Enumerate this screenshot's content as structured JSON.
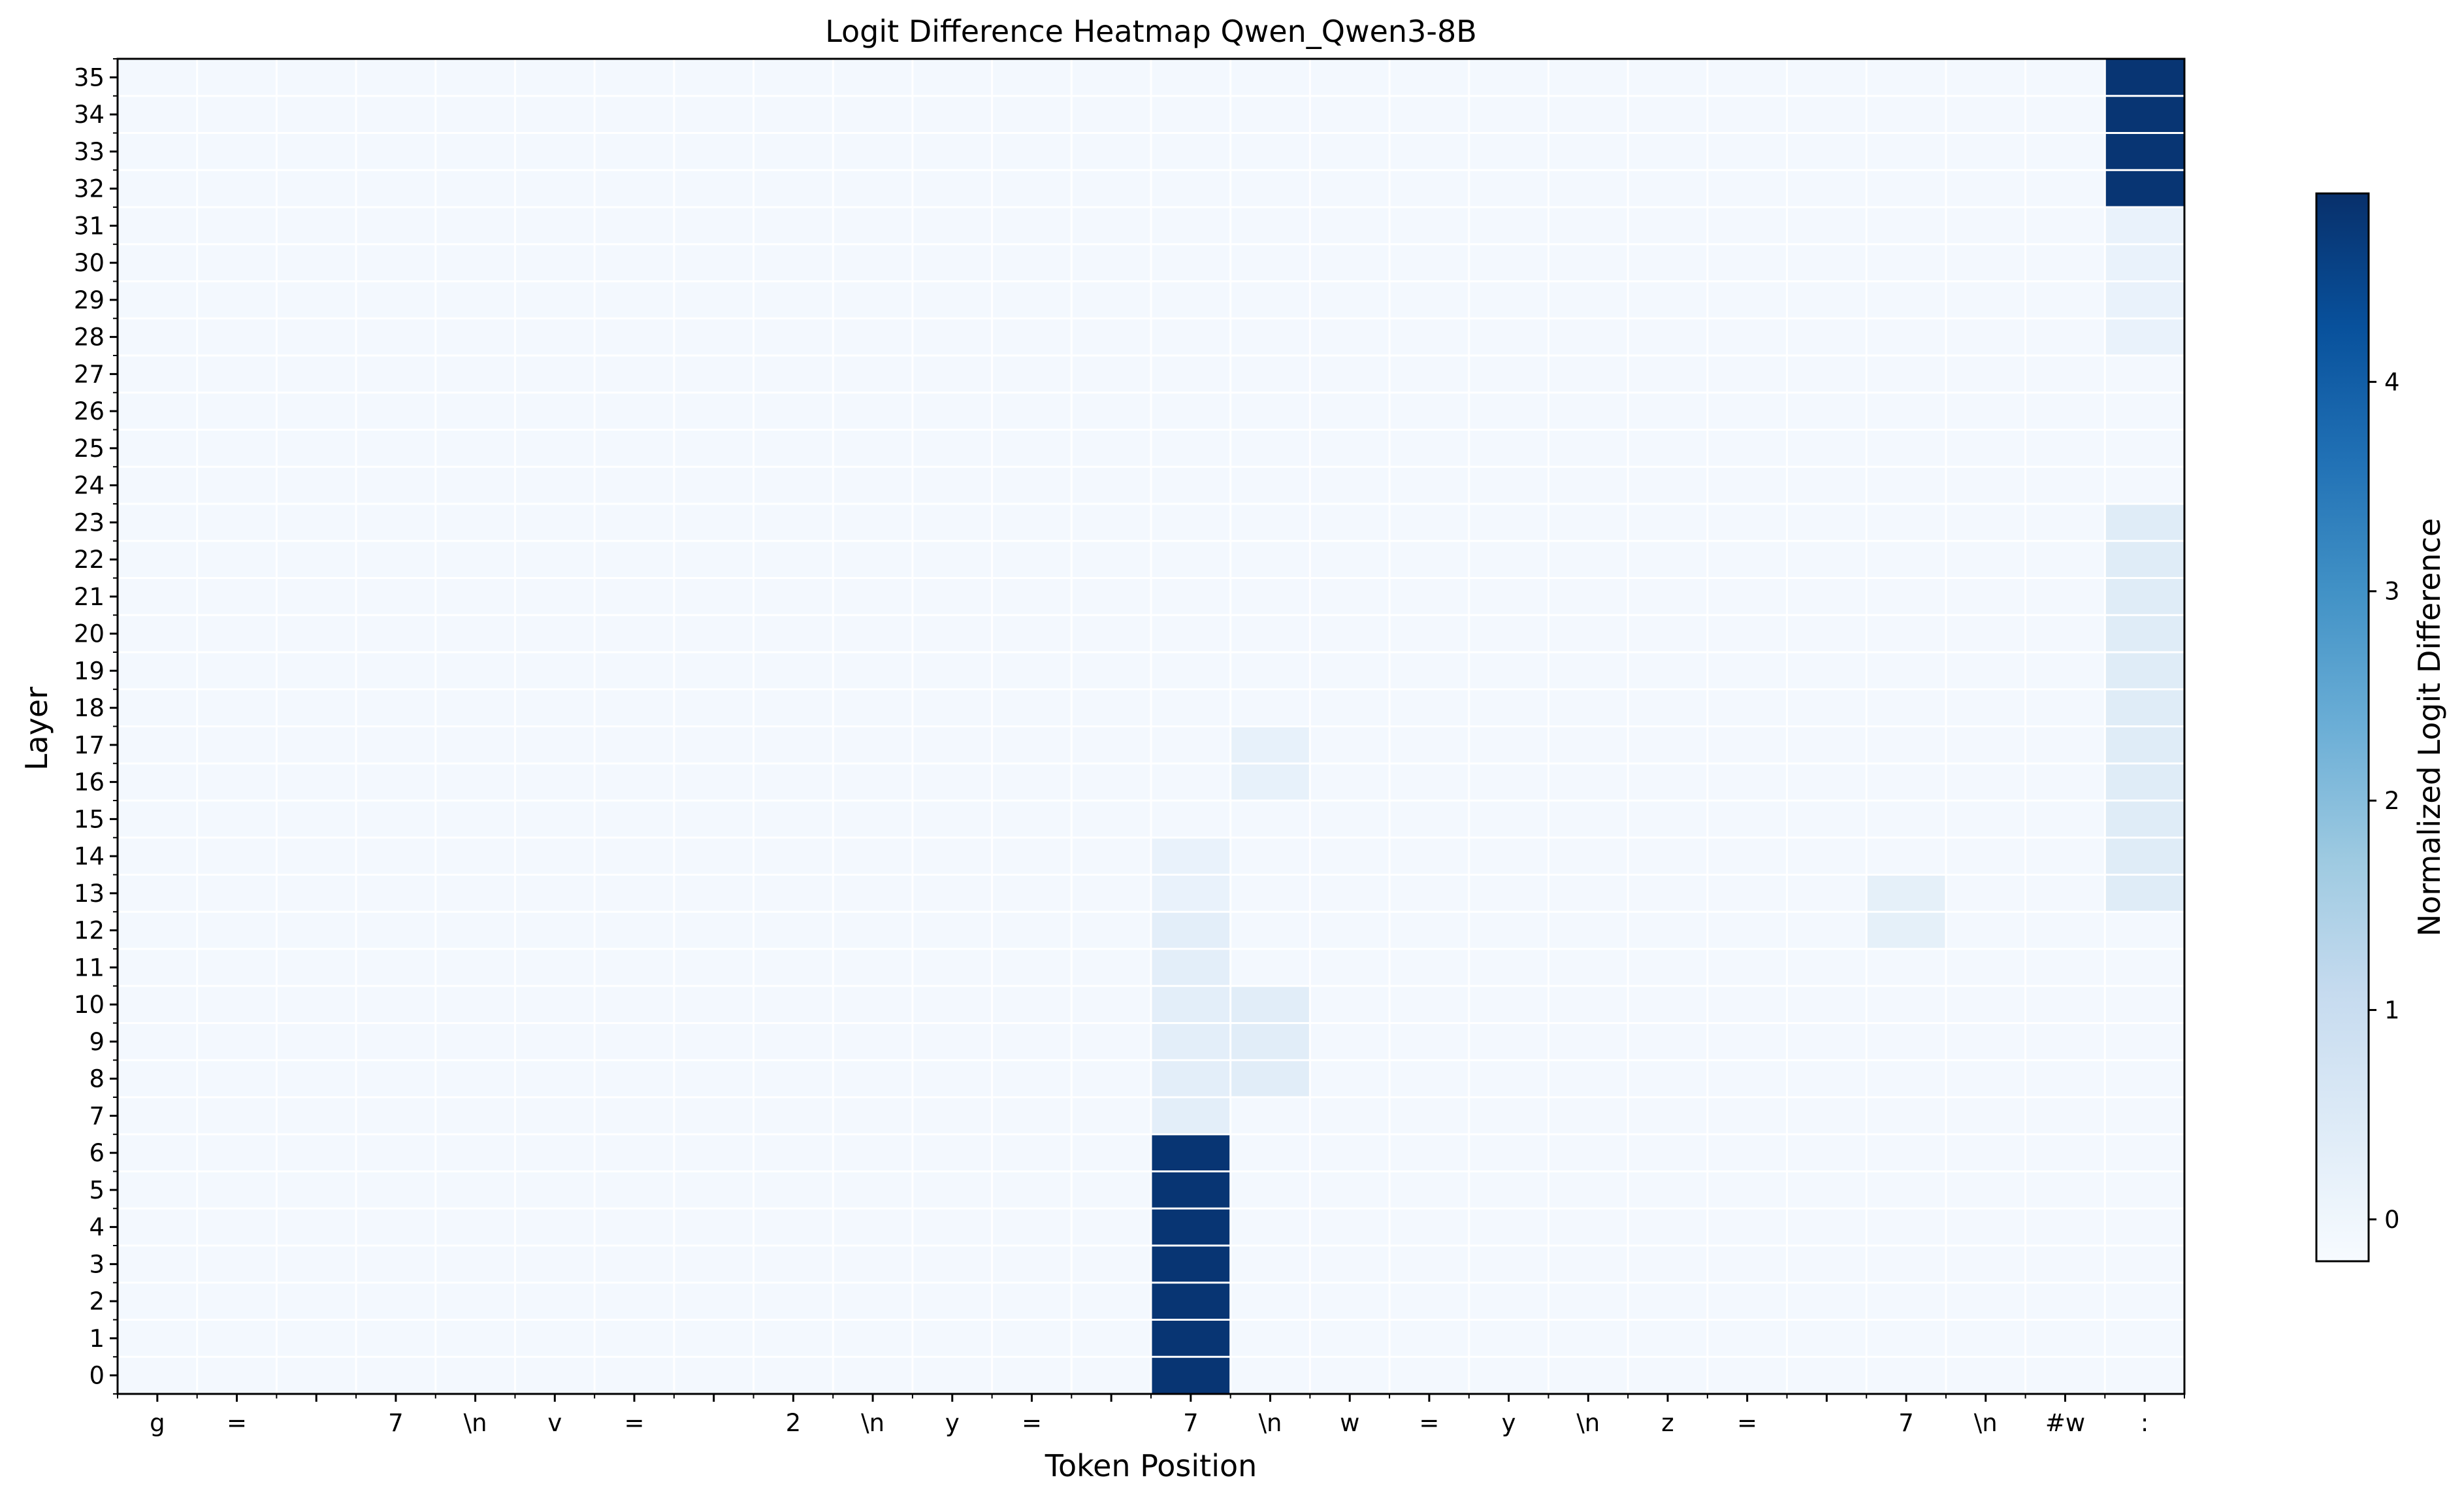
{
  "chart_data": {
    "type": "heatmap",
    "title": "Logit Difference Heatmap Qwen_Qwen3-8B",
    "xlabel": "Token Position",
    "ylabel": "Layer",
    "x_tokens": [
      "g",
      "=",
      "",
      "7",
      "\\n",
      "v",
      "=",
      "",
      "2",
      "\\n",
      "y",
      "=",
      "",
      "7",
      "\\n",
      "w",
      "=",
      "y",
      "\\n",
      "z",
      "=",
      "",
      "7",
      "\\n",
      "#w",
      ":"
    ],
    "layers": [
      0,
      1,
      2,
      3,
      4,
      5,
      6,
      7,
      8,
      9,
      10,
      11,
      12,
      13,
      14,
      15,
      16,
      17,
      18,
      19,
      20,
      21,
      22,
      23,
      24,
      25,
      26,
      27,
      28,
      29,
      30,
      31,
      32,
      33,
      34,
      35
    ],
    "y_tick_labels": [
      "0",
      "1",
      "2",
      "3",
      "4",
      "5",
      "6",
      "7",
      "8",
      "9",
      "10",
      "11",
      "12",
      "13",
      "14",
      "15",
      "16",
      "17",
      "18",
      "19",
      "20",
      "21",
      "22",
      "23",
      "24",
      "25",
      "26",
      "27",
      "28",
      "29",
      "30",
      "31",
      "32",
      "33",
      "34",
      "35"
    ],
    "baseline_value": -0.1,
    "cell_overrides": [
      {
        "token_index": 13,
        "layers": [
          0,
          1,
          2,
          3,
          4,
          5,
          6
        ],
        "value": 4.8
      },
      {
        "token_index": 13,
        "layers": [
          7,
          8,
          9,
          10,
          11,
          12
        ],
        "value": 0.3
      },
      {
        "token_index": 13,
        "layers": [
          13,
          14
        ],
        "value": 0.15
      },
      {
        "token_index": 14,
        "layers": [
          8,
          9,
          10
        ],
        "value": 0.35
      },
      {
        "token_index": 14,
        "layers": [
          16,
          17
        ],
        "value": 0.2
      },
      {
        "token_index": 22,
        "layers": [
          12,
          13
        ],
        "value": 0.25
      },
      {
        "token_index": 25,
        "layers": [
          32,
          33,
          34,
          35
        ],
        "value": 4.8
      },
      {
        "token_index": 25,
        "layers": [
          13,
          14,
          15,
          16,
          17,
          18,
          19,
          20,
          21,
          22,
          23
        ],
        "value": 0.4
      },
      {
        "token_index": 25,
        "layers": [
          28,
          29,
          30,
          31
        ],
        "value": 0.15
      }
    ],
    "colorbar": {
      "label": "Normalized Logit Difference",
      "range": [
        -0.2,
        4.9
      ],
      "ticks": [
        0,
        1,
        2,
        3,
        4
      ],
      "tick_labels": [
        "0",
        "1",
        "2",
        "3",
        "4"
      ],
      "colormap": "Blues",
      "colors": [
        "#f7fbff",
        "#deebf7",
        "#c6dbef",
        "#9ecae1",
        "#6baed6",
        "#4292c6",
        "#2171b5",
        "#08519c",
        "#08306b"
      ]
    },
    "grid_color": "#ffffff"
  }
}
